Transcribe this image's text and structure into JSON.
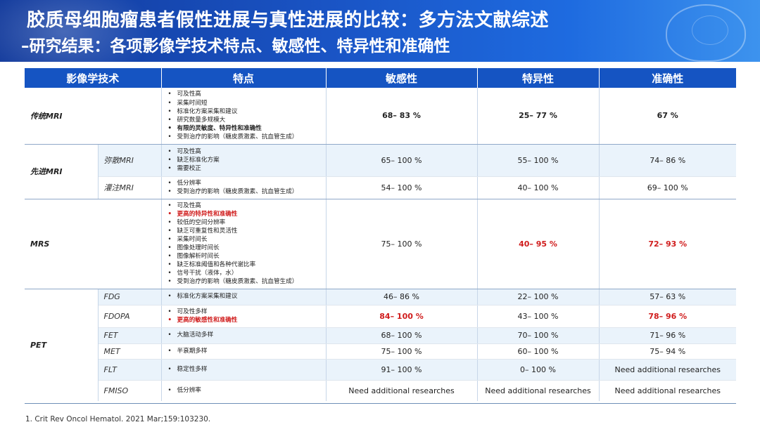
{
  "header": {
    "title": "胶质母细胞瘤患者假性进展与真性进展的比较：多方法文献综述",
    "subtitle": "–研究结果：各项影像学技术特点、敏感性、特异性和准确性"
  },
  "table": {
    "columns": [
      "影像学技术",
      "特点",
      "敏感性",
      "特异性",
      "准确性"
    ],
    "conventional_mri": {
      "name": "传统MRI",
      "features": [
        "可及性高",
        "采集时间短",
        "标准化方案采集和建议",
        "研究数量多规模大",
        "有限的灵敏度、特异性和准确性",
        "受到治疗的影响（糖皮质激素、抗血管生成）"
      ],
      "sensitivity": "68– 83 %",
      "specificity": "25– 77 %",
      "accuracy": "67 %"
    },
    "advanced_mri": {
      "name": "先进MRI",
      "dwi": {
        "name": "弥散MRI",
        "features": [
          "可及性高",
          "缺乏标准化方案",
          "需要校正"
        ],
        "sensitivity": "65– 100 %",
        "specificity": "55– 100 %",
        "accuracy": "74– 86 %"
      },
      "pwi": {
        "name": "灌注MRI",
        "features": [
          "低分辨率",
          "受到治疗的影响（糖皮质激素、抗血管生成）"
        ],
        "sensitivity": "54– 100 %",
        "specificity": "40– 100 %",
        "accuracy": "69– 100 %"
      }
    },
    "mrs": {
      "name": "MRS",
      "features": [
        "可及性高",
        "更高的特异性和准确性",
        "较低的空间分辨率",
        "缺乏可重复性和灵活性",
        "采集时间长",
        "图像处理时间长",
        "图像解析时间长",
        "缺乏标准阈值和各种代谢比率",
        "信号干扰（液体，水）",
        "受到治疗的影响（糖皮质激素、抗血管生成）"
      ],
      "sensitivity": "75– 100 %",
      "specificity": "40– 95 %",
      "accuracy": "72– 93 %"
    },
    "pet": {
      "name": "PET",
      "fdg": {
        "name": "FDG",
        "features": [
          "标准化方案采集和建议"
        ],
        "sensitivity": "46– 86 %",
        "specificity": "22– 100 %",
        "accuracy": "57– 63 %"
      },
      "fdopa": {
        "name": "FDOPA",
        "features": [
          "可及性多样",
          "更高的敏感性和准确性"
        ],
        "sensitivity": "84– 100 %",
        "specificity": "43– 100 %",
        "accuracy": "78– 96 %"
      },
      "fet": {
        "name": "FET",
        "features": [
          "大脑活动多样"
        ],
        "sensitivity": "68– 100 %",
        "specificity": "70– 100 %",
        "accuracy": "71– 96 %"
      },
      "met": {
        "name": "MET",
        "features": [
          "半衰期多样"
        ],
        "sensitivity": "75– 100 %",
        "specificity": "60– 100 %",
        "accuracy": "75– 94 %"
      },
      "flt": {
        "name": "FLT",
        "features": [
          "稳定性多样"
        ],
        "sensitivity": "91– 100 %",
        "specificity": "0– 100 %",
        "accuracy": "Need additional researches"
      },
      "fmiso": {
        "name": "FMISO",
        "features": [
          "低分辨率"
        ],
        "sensitivity": "Need additional researches",
        "specificity": "Need additional researches",
        "accuracy": "Need additional researches"
      }
    }
  },
  "footnote": "1.   Crit Rev Oncol Hematol. 2021 Mar;159:103230.",
  "colors": {
    "header_blue": "#1554c2",
    "band": "#eaf3fb",
    "highlight_red": "#d01c1c"
  }
}
